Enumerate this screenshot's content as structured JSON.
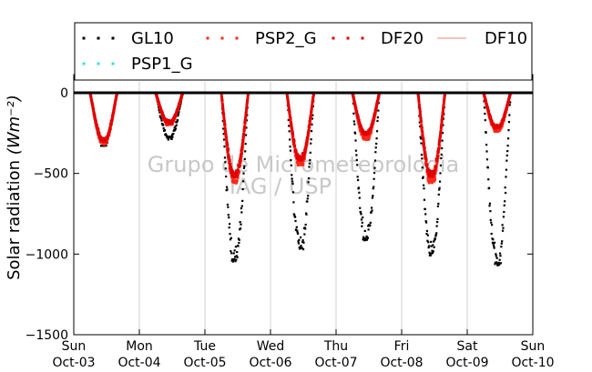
{
  "chart_data": {
    "type": "scatter",
    "ylabel": "Solar radiation",
    "ylabel_unit": "(Wm⁻²)",
    "ylim": [
      -1500,
      70
    ],
    "xlim": [
      0,
      7
    ],
    "y_ticks": [
      0,
      -500,
      -1000,
      -1500
    ],
    "y_tick_labels": [
      "0",
      "−500",
      "−1000",
      "−1500"
    ],
    "x_ticks": [
      0,
      1,
      2,
      3,
      4,
      5,
      6,
      7
    ],
    "x_tick_labels": [
      [
        "Sun",
        "Oct-03"
      ],
      [
        "Mon",
        "Oct-04"
      ],
      [
        "Tue",
        "Oct-05"
      ],
      [
        "Wed",
        "Oct-06"
      ],
      [
        "Thu",
        "Oct-07"
      ],
      [
        "Fri",
        "Oct-08"
      ],
      [
        "Sat",
        "Oct-09"
      ],
      [
        "Sun",
        "Oct-10"
      ]
    ],
    "grid": "vertical",
    "legend_position": "top",
    "watermark": [
      "Grupo de Micrometeorologia",
      "IAG / USP"
    ],
    "series": [
      {
        "name": "GL10",
        "style": "dots",
        "color": "#000000",
        "daily_min": [
          -330,
          -290,
          -1050,
          -970,
          -920,
          -1010,
          -1070
        ],
        "x": [
          0.28,
          0.36,
          0.44,
          1.27,
          1.36,
          1.45,
          2.37,
          2.47,
          2.55,
          3.32,
          3.44,
          3.55,
          4.37,
          4.47,
          4.57,
          5.37,
          5.48,
          5.58,
          6.37,
          6.47,
          6.57
        ],
        "y": [
          -80,
          -330,
          -100,
          -90,
          -290,
          -90,
          -420,
          -1050,
          -380,
          -300,
          -970,
          -250,
          -420,
          -920,
          -280,
          -480,
          -1010,
          -250,
          -450,
          -1070,
          -240
        ]
      },
      {
        "name": "PSP2_G",
        "style": "dots",
        "color": "#ff2a1a",
        "daily_min": [
          -320,
          -200,
          -560,
          -450,
          -290,
          -560,
          -240
        ],
        "x": [
          0.28,
          0.36,
          0.44,
          1.27,
          1.36,
          1.45,
          2.37,
          2.47,
          2.55,
          3.32,
          3.44,
          3.55,
          4.37,
          4.47,
          4.57,
          5.37,
          5.48,
          5.58,
          6.37,
          6.47,
          6.57
        ],
        "y": [
          -80,
          -320,
          -100,
          -80,
          -200,
          -80,
          -300,
          -560,
          -280,
          -200,
          -450,
          -260,
          -200,
          -290,
          -220,
          -300,
          -560,
          -160,
          -150,
          -240,
          -110
        ]
      },
      {
        "name": "DF20",
        "style": "dots",
        "color": "#e00000",
        "daily_min": [
          -300,
          -190,
          -520,
          -420,
          -260,
          -520,
          -220
        ],
        "x": [
          0.28,
          0.36,
          0.44,
          1.27,
          1.36,
          1.45,
          2.37,
          2.47,
          2.55,
          3.32,
          3.44,
          3.55,
          4.37,
          4.47,
          4.57,
          5.37,
          5.48,
          5.58,
          6.37,
          6.47,
          6.57
        ],
        "y": [
          -80,
          -300,
          -100,
          -80,
          -190,
          -80,
          -290,
          -520,
          -270,
          -190,
          -420,
          -240,
          -190,
          -260,
          -200,
          -290,
          -520,
          -150,
          -140,
          -220,
          -100
        ]
      },
      {
        "name": "DF10",
        "style": "line",
        "color": "#ff8080",
        "x": [
          0,
          7
        ],
        "y": [
          0,
          0
        ]
      },
      {
        "name": "PSP1_G",
        "style": "dots",
        "color": "#40e0d0",
        "x": [
          0,
          7
        ],
        "y": [
          0,
          0
        ]
      }
    ]
  }
}
